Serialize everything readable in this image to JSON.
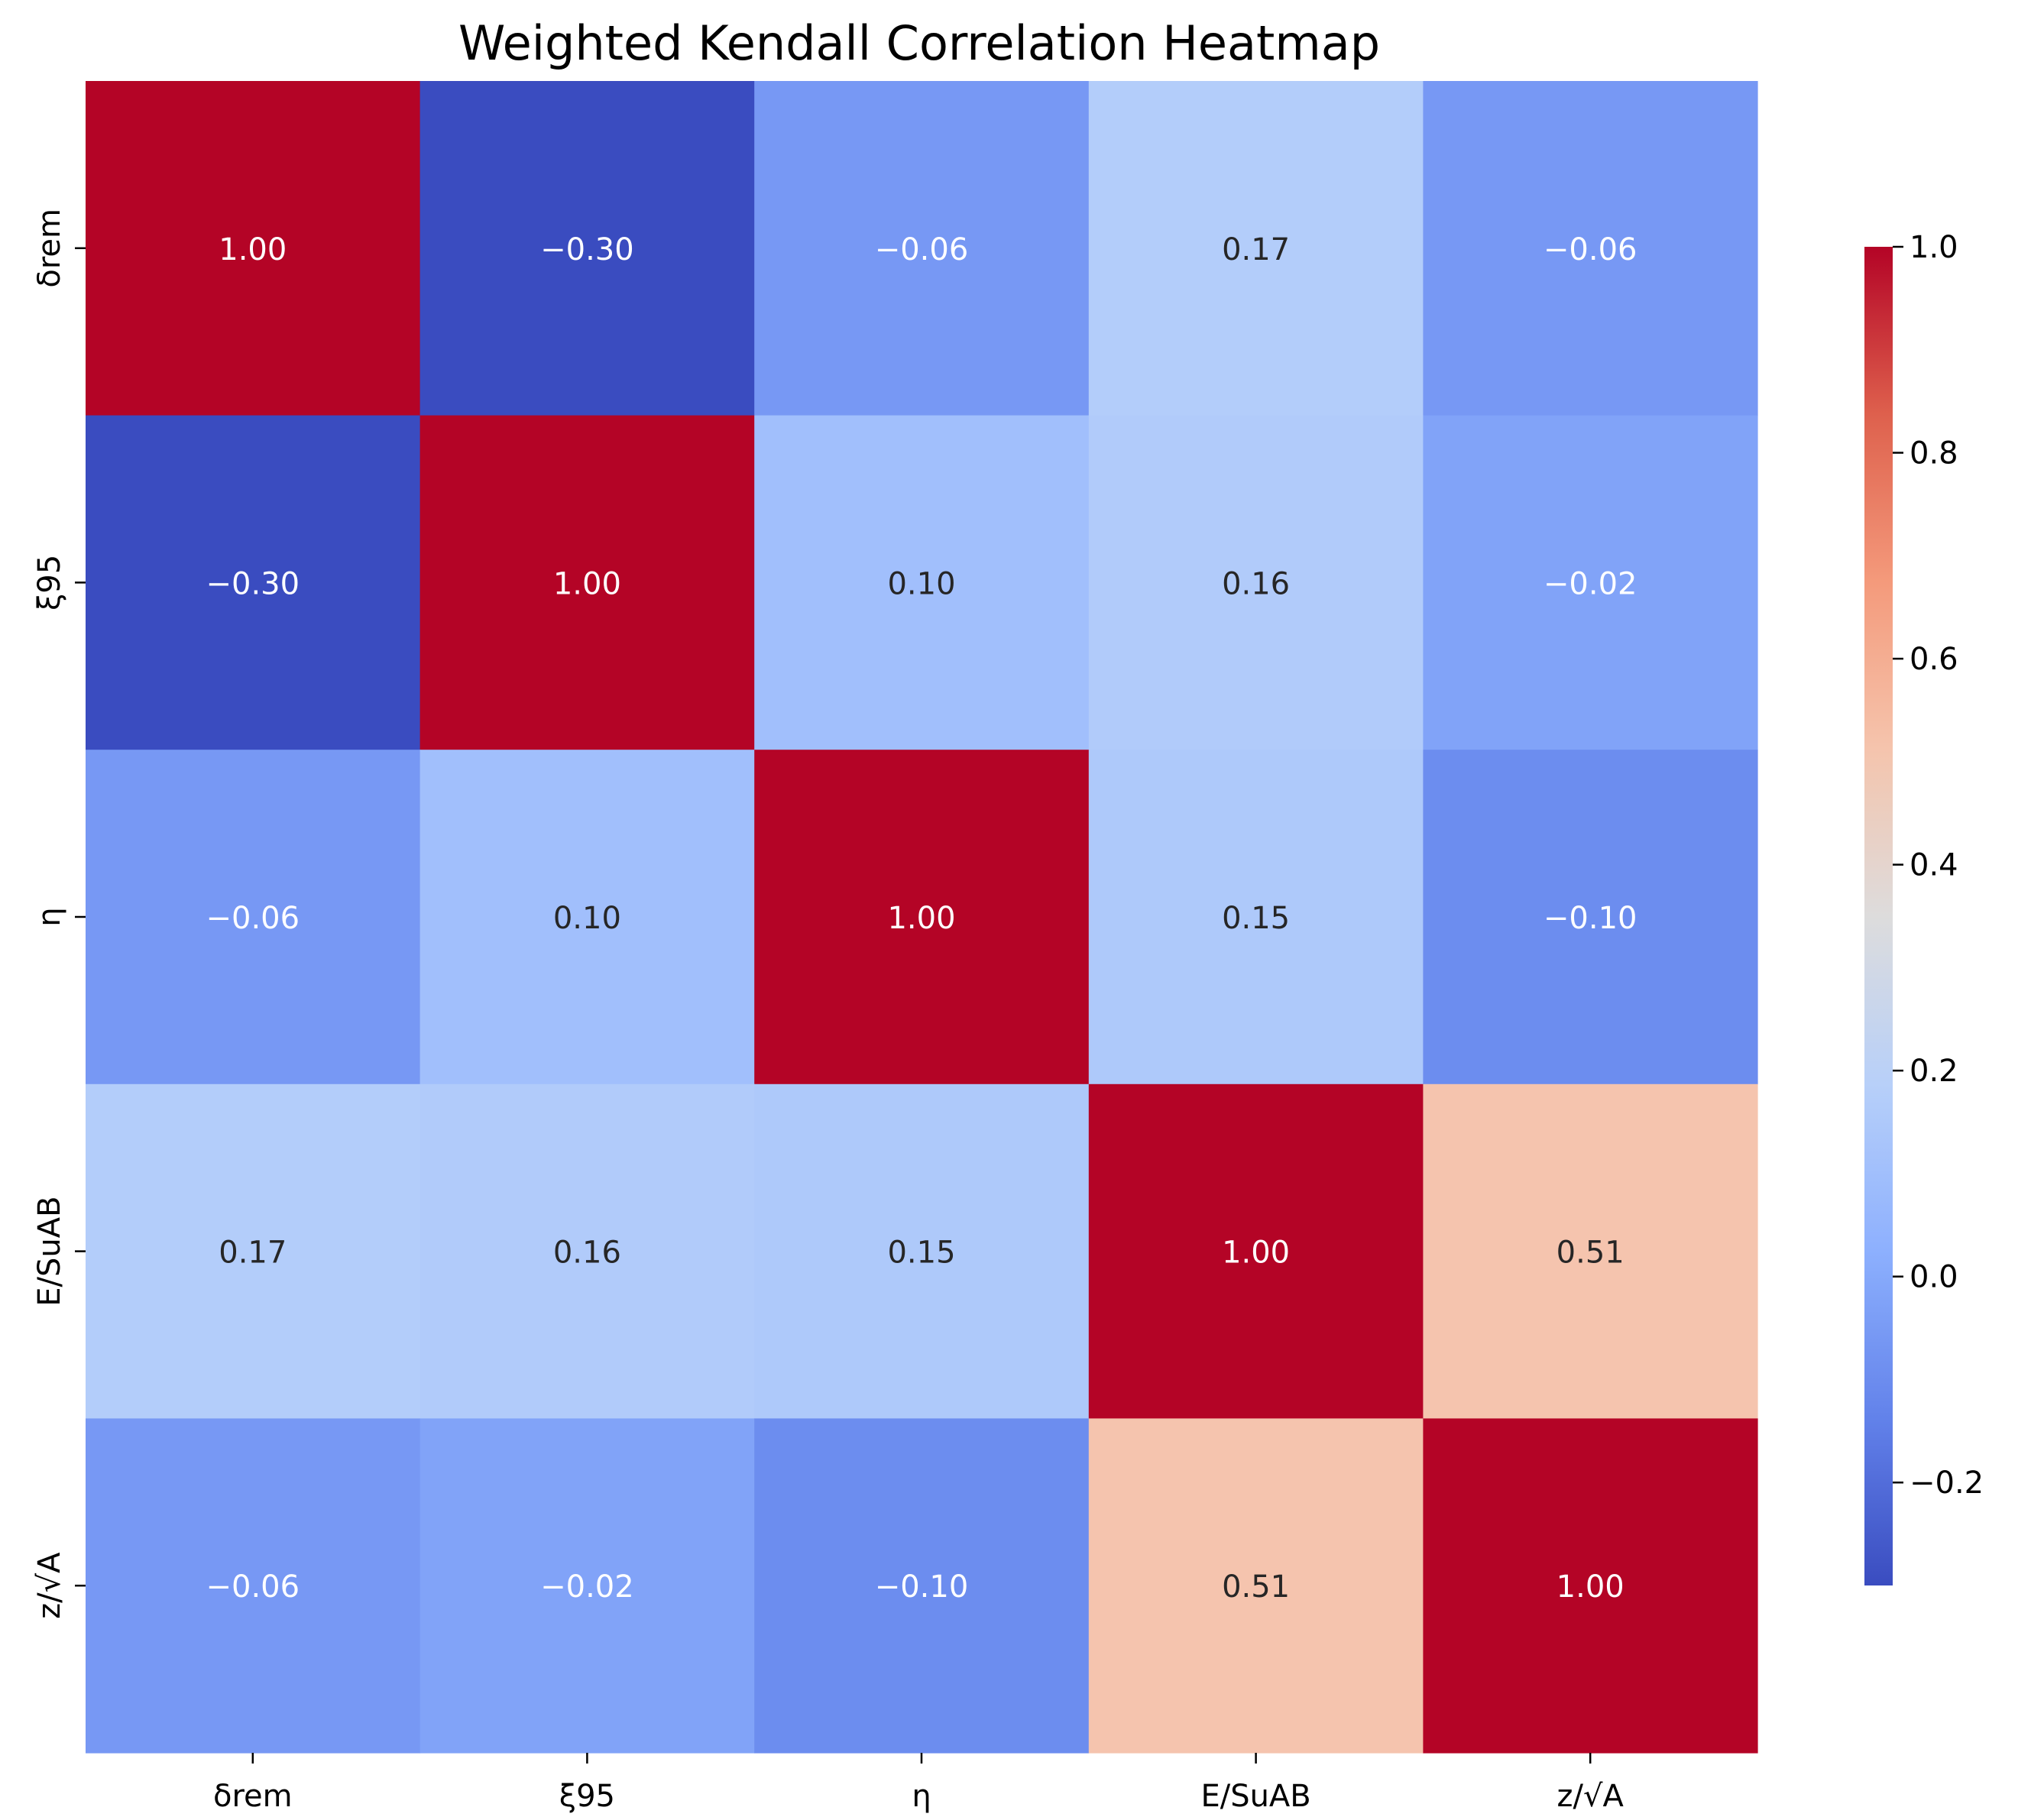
{
  "chart_data": {
    "type": "heatmap",
    "title": "Weighted Kendall Correlation Heatmap",
    "xlabel": "",
    "ylabel": "",
    "x_categories": [
      "δrem",
      "ξ95",
      "η",
      "E/SuAB",
      "z/√A"
    ],
    "y_categories": [
      "δrem",
      "ξ95",
      "η",
      "E/SuAB",
      "z/√A"
    ],
    "matrix": [
      [
        1.0,
        -0.3,
        -0.06,
        0.17,
        -0.06
      ],
      [
        -0.3,
        1.0,
        0.1,
        0.16,
        -0.02
      ],
      [
        -0.06,
        0.1,
        1.0,
        0.15,
        -0.1
      ],
      [
        0.17,
        0.16,
        0.15,
        1.0,
        0.51
      ],
      [
        -0.06,
        -0.02,
        -0.1,
        0.51,
        1.0
      ]
    ],
    "annotations": [
      [
        "1.00",
        "−0.30",
        "−0.06",
        "0.17",
        "−0.06"
      ],
      [
        "−0.30",
        "1.00",
        "0.10",
        "0.16",
        "−0.02"
      ],
      [
        "−0.06",
        "0.10",
        "1.00",
        "0.15",
        "−0.10"
      ],
      [
        "0.17",
        "0.16",
        "0.15",
        "1.00",
        "0.51"
      ],
      [
        "−0.06",
        "−0.02",
        "−0.10",
        "0.51",
        "1.00"
      ]
    ],
    "colormap": "coolwarm",
    "value_range": [
      -0.3,
      1.0
    ],
    "colorbar": {
      "ticks": [
        -0.2,
        0.0,
        0.2,
        0.4,
        0.6,
        0.8,
        1.0
      ],
      "tick_labels": [
        "−0.2",
        "0.0",
        "0.2",
        "0.4",
        "0.6",
        "0.8",
        "1.0"
      ],
      "placement": "right"
    }
  },
  "colors": {
    "text_dark": "#262626",
    "text_light": "#ffffff",
    "axis": "#000000",
    "background": "#ffffff"
  }
}
